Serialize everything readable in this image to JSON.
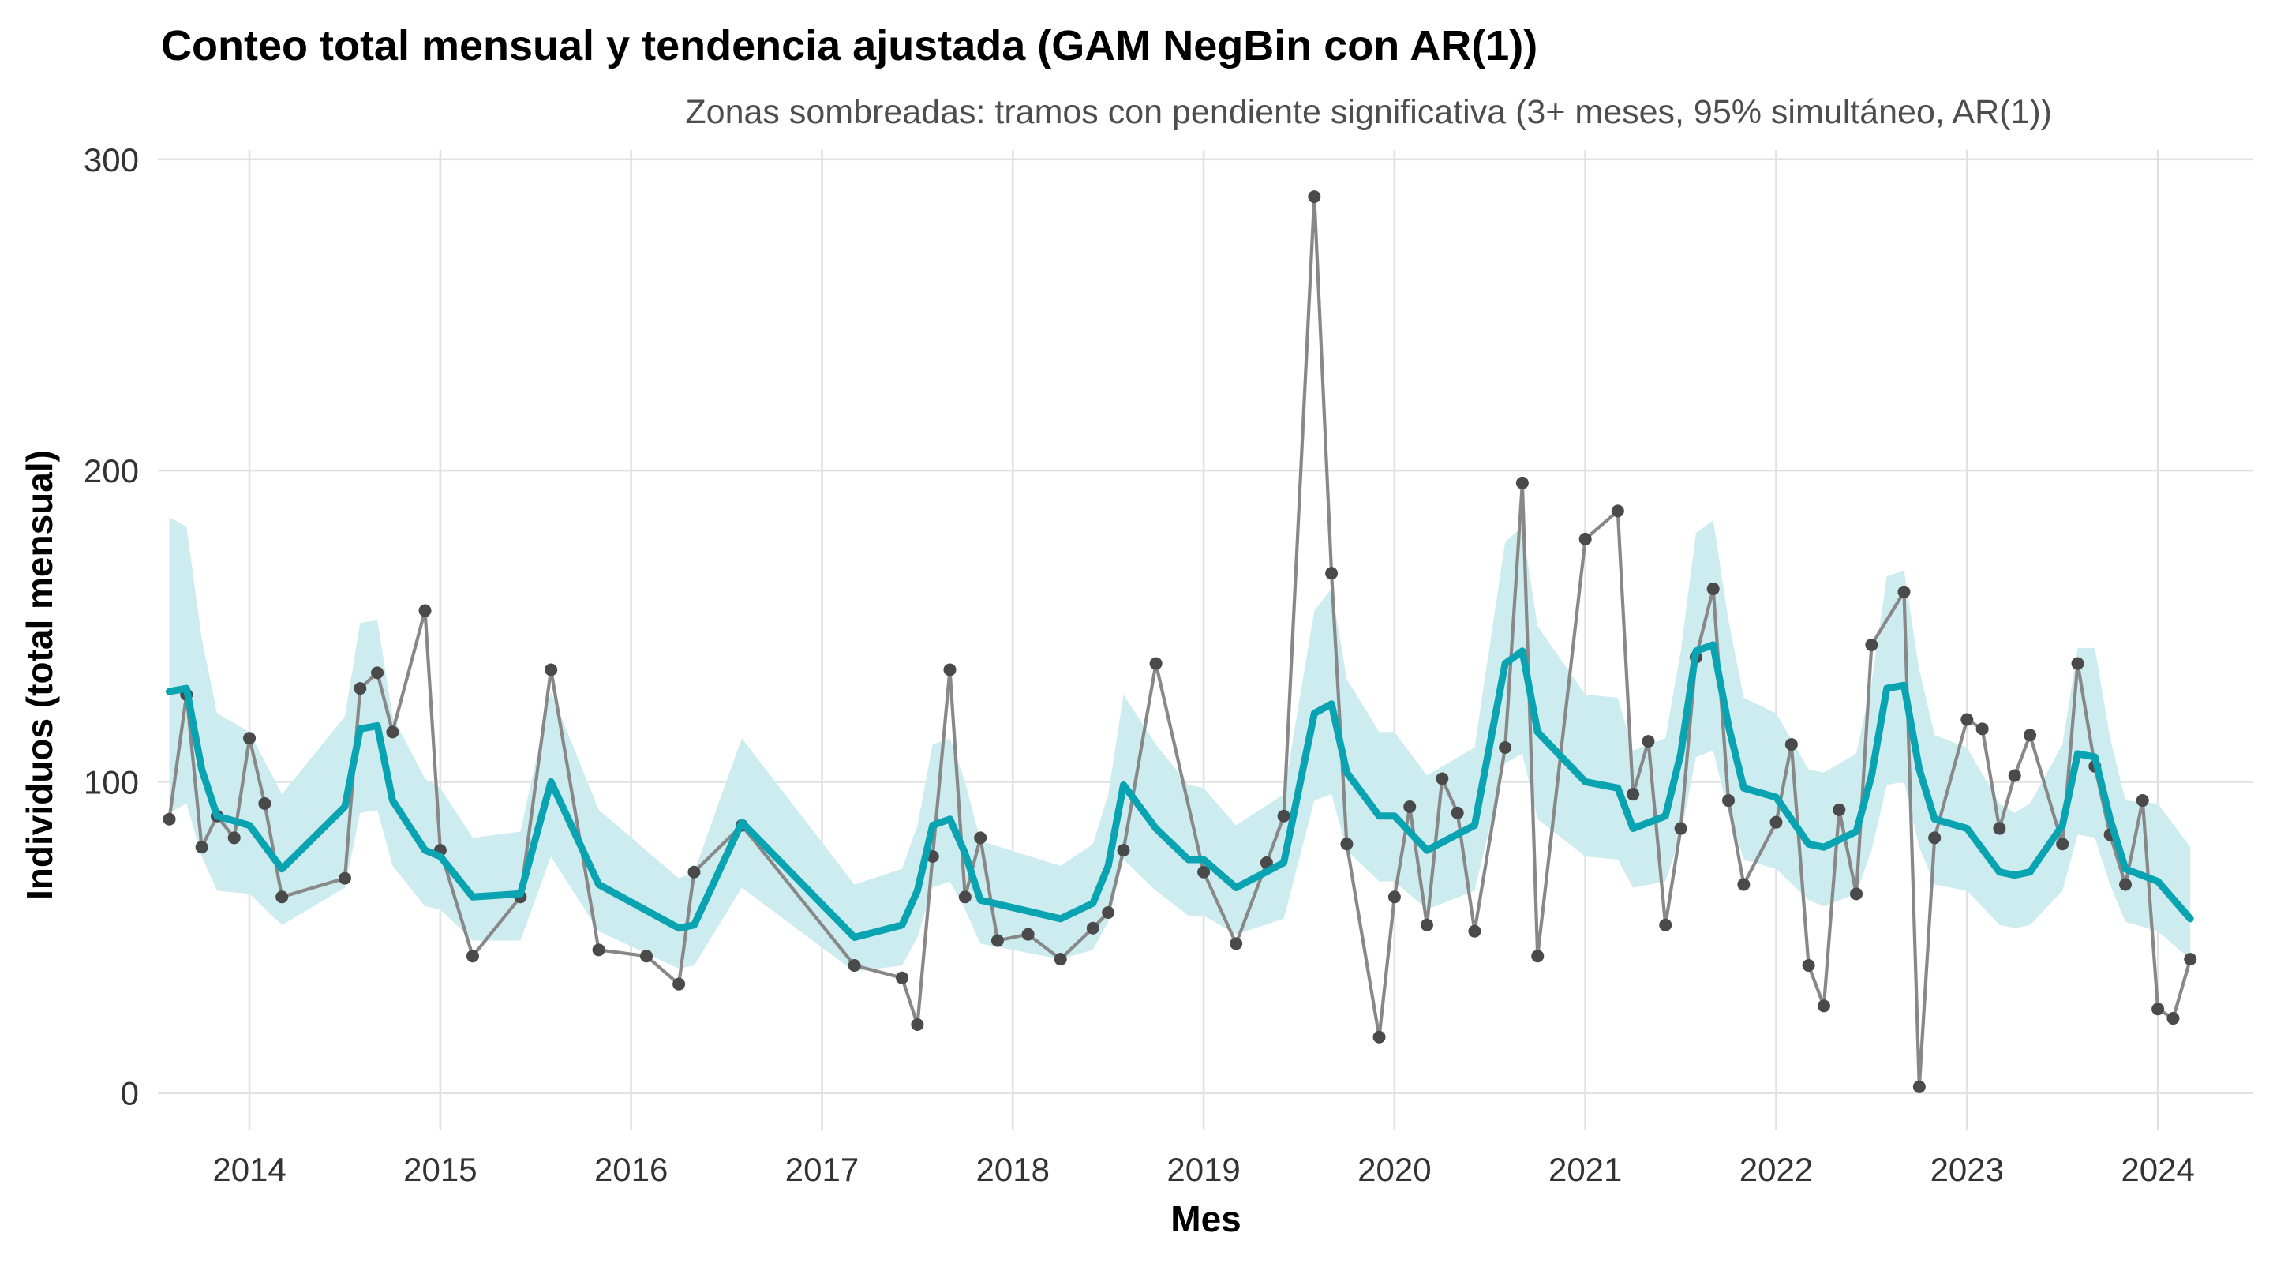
{
  "chart_data": {
    "type": "line",
    "title": "Conteo total mensual y tendencia ajustada (GAM NegBin con AR(1))",
    "subtitle": "Zonas sombreadas: tramos con pendiente significativa (3+ meses, 95% simultáneo, AR(1))",
    "xlabel": "Mes",
    "ylabel": "Individuos (total mensual)",
    "x_ticks": [
      "2014",
      "2015",
      "2016",
      "2017",
      "2018",
      "2019",
      "2020",
      "2021",
      "2022",
      "2023",
      "2024"
    ],
    "y_ticks": [
      0,
      100,
      200,
      300
    ],
    "ylim": [
      -12,
      303
    ],
    "xlim": [
      2013.52,
      2024.5
    ],
    "grid": true,
    "legend": "none",
    "colors": {
      "observed_line": "#888888",
      "observed_point": "#4a4a4a",
      "trend": "#0aa3b1",
      "band": "#cdecef"
    },
    "series": [
      {
        "kind": "observed",
        "x": [
          2013.58,
          2013.67,
          2013.75,
          2013.83,
          2013.92,
          2014.0,
          2014.08,
          2014.17,
          2014.5,
          2014.58,
          2014.67,
          2014.75,
          2014.92,
          2015.0,
          2015.17,
          2015.42,
          2015.58,
          2015.83,
          2016.08,
          2016.25,
          2016.33,
          2016.58,
          2017.17,
          2017.42,
          2017.5,
          2017.58,
          2017.67,
          2017.75,
          2017.83,
          2017.92,
          2018.08,
          2018.25,
          2018.42,
          2018.5,
          2018.58,
          2018.75,
          2019.0,
          2019.17,
          2019.33,
          2019.42,
          2019.58,
          2019.67,
          2019.75,
          2019.92,
          2020.0,
          2020.08,
          2020.17,
          2020.25,
          2020.33,
          2020.42,
          2020.58,
          2020.67,
          2020.75,
          2021.0,
          2021.17,
          2021.25,
          2021.33,
          2021.42,
          2021.5,
          2021.58,
          2021.67,
          2021.75,
          2021.83,
          2022.0,
          2022.08,
          2022.17,
          2022.25,
          2022.33,
          2022.42,
          2022.5,
          2022.67,
          2022.75,
          2022.83,
          2023.0,
          2023.08,
          2023.17,
          2023.25,
          2023.33,
          2023.5,
          2023.58,
          2023.67,
          2023.75,
          2023.83,
          2023.92,
          2024.0,
          2024.08,
          2024.17
        ],
        "y": [
          88,
          128,
          79,
          89,
          82,
          114,
          93,
          63,
          69,
          130,
          135,
          116,
          155,
          78,
          44,
          63,
          136,
          46,
          44,
          35,
          71,
          86,
          41,
          37,
          22,
          76,
          136,
          63,
          82,
          49,
          51,
          43,
          53,
          58,
          78,
          138,
          71,
          48,
          74,
          89,
          288,
          167,
          80,
          18,
          63,
          92,
          54,
          101,
          90,
          52,
          111,
          196,
          44,
          178,
          187,
          96,
          113,
          54,
          85,
          140,
          162,
          94,
          67,
          87,
          112,
          41,
          28,
          91,
          64,
          144,
          161,
          2,
          82,
          120,
          117,
          85,
          102,
          115,
          80,
          138,
          105,
          83,
          67,
          94,
          27,
          24,
          43
        ]
      },
      {
        "kind": "trend",
        "x": [
          2013.58,
          2013.67,
          2013.75,
          2013.83,
          2014.0,
          2014.17,
          2014.5,
          2014.58,
          2014.67,
          2014.75,
          2014.92,
          2015.0,
          2015.17,
          2015.42,
          2015.58,
          2015.83,
          2016.25,
          2016.33,
          2016.58,
          2017.17,
          2017.42,
          2017.5,
          2017.58,
          2017.67,
          2017.75,
          2017.83,
          2018.25,
          2018.42,
          2018.5,
          2018.58,
          2018.75,
          2018.92,
          2019.0,
          2019.17,
          2019.42,
          2019.58,
          2019.67,
          2019.75,
          2019.92,
          2020.0,
          2020.17,
          2020.42,
          2020.58,
          2020.67,
          2020.75,
          2021.0,
          2021.17,
          2021.25,
          2021.42,
          2021.5,
          2021.58,
          2021.67,
          2021.75,
          2021.83,
          2022.0,
          2022.17,
          2022.25,
          2022.42,
          2022.5,
          2022.58,
          2022.67,
          2022.75,
          2022.83,
          2023.0,
          2023.17,
          2023.25,
          2023.33,
          2023.5,
          2023.58,
          2023.67,
          2023.75,
          2023.83,
          2024.0,
          2024.17
        ],
        "y": [
          129,
          130,
          104,
          89,
          86,
          72,
          92,
          117,
          118,
          94,
          78,
          76,
          63,
          64,
          100,
          67,
          53,
          54,
          87,
          50,
          54,
          65,
          86,
          88,
          77,
          62,
          56,
          61,
          73,
          99,
          85,
          75,
          75,
          66,
          74,
          122,
          125,
          103,
          89,
          89,
          78,
          86,
          138,
          142,
          116,
          100,
          98,
          85,
          89,
          109,
          142,
          144,
          118,
          98,
          95,
          80,
          79,
          84,
          102,
          130,
          131,
          104,
          88,
          85,
          71,
          70,
          71,
          86,
          109,
          108,
          88,
          72,
          68,
          56
        ]
      }
    ],
    "bands": [
      {
        "x": [
          2013.58,
          2013.67,
          2013.75,
          2013.83,
          2014.0,
          2014.17,
          2014.5,
          2014.58,
          2014.67,
          2014.75,
          2014.92,
          2015.0,
          2015.17,
          2015.42,
          2015.58,
          2015.83,
          2016.25,
          2016.33,
          2016.58,
          2017.17,
          2017.42,
          2017.5,
          2017.58,
          2017.67,
          2017.75,
          2017.83,
          2018.25,
          2018.42,
          2018.5,
          2018.58,
          2018.75,
          2018.92,
          2019.0,
          2019.17,
          2019.42,
          2019.58,
          2019.67,
          2019.75,
          2019.92,
          2020.0,
          2020.17,
          2020.42,
          2020.58,
          2020.67,
          2020.75,
          2021.0,
          2021.17,
          2021.25,
          2021.42,
          2021.5,
          2021.58,
          2021.67,
          2021.75,
          2021.83,
          2022.0,
          2022.17,
          2022.25,
          2022.42,
          2022.5,
          2022.58,
          2022.67,
          2022.75,
          2022.83,
          2023.0,
          2023.17,
          2023.25,
          2023.33,
          2023.5,
          2023.58,
          2023.67,
          2023.75,
          2023.83,
          2024.0,
          2024.17
        ],
        "lower": [
          90,
          93,
          76,
          65,
          64,
          54,
          66,
          90,
          91,
          73,
          60,
          59,
          49,
          49,
          76,
          52,
          40,
          41,
          66,
          39,
          41,
          50,
          66,
          68,
          59,
          48,
          43,
          46,
          55,
          75,
          65,
          57,
          57,
          51,
          56,
          94,
          96,
          78,
          68,
          68,
          59,
          65,
          106,
          109,
          88,
          76,
          75,
          66,
          68,
          83,
          108,
          110,
          90,
          75,
          72,
          62,
          60,
          64,
          78,
          99,
          100,
          79,
          67,
          65,
          54,
          53,
          54,
          65,
          83,
          82,
          67,
          55,
          52,
          43
        ],
        "upper": [
          185,
          182,
          146,
          122,
          116,
          96,
          121,
          151,
          152,
          121,
          101,
          98,
          82,
          84,
          129,
          91,
          69,
          71,
          114,
          67,
          72,
          86,
          112,
          114,
          100,
          81,
          73,
          80,
          96,
          128,
          112,
          99,
          98,
          86,
          96,
          155,
          162,
          133,
          116,
          116,
          102,
          111,
          177,
          182,
          150,
          128,
          127,
          110,
          114,
          142,
          180,
          184,
          152,
          127,
          122,
          104,
          103,
          109,
          132,
          166,
          168,
          136,
          115,
          111,
          93,
          90,
          93,
          112,
          143,
          143,
          114,
          94,
          93,
          79
        ]
      }
    ]
  }
}
